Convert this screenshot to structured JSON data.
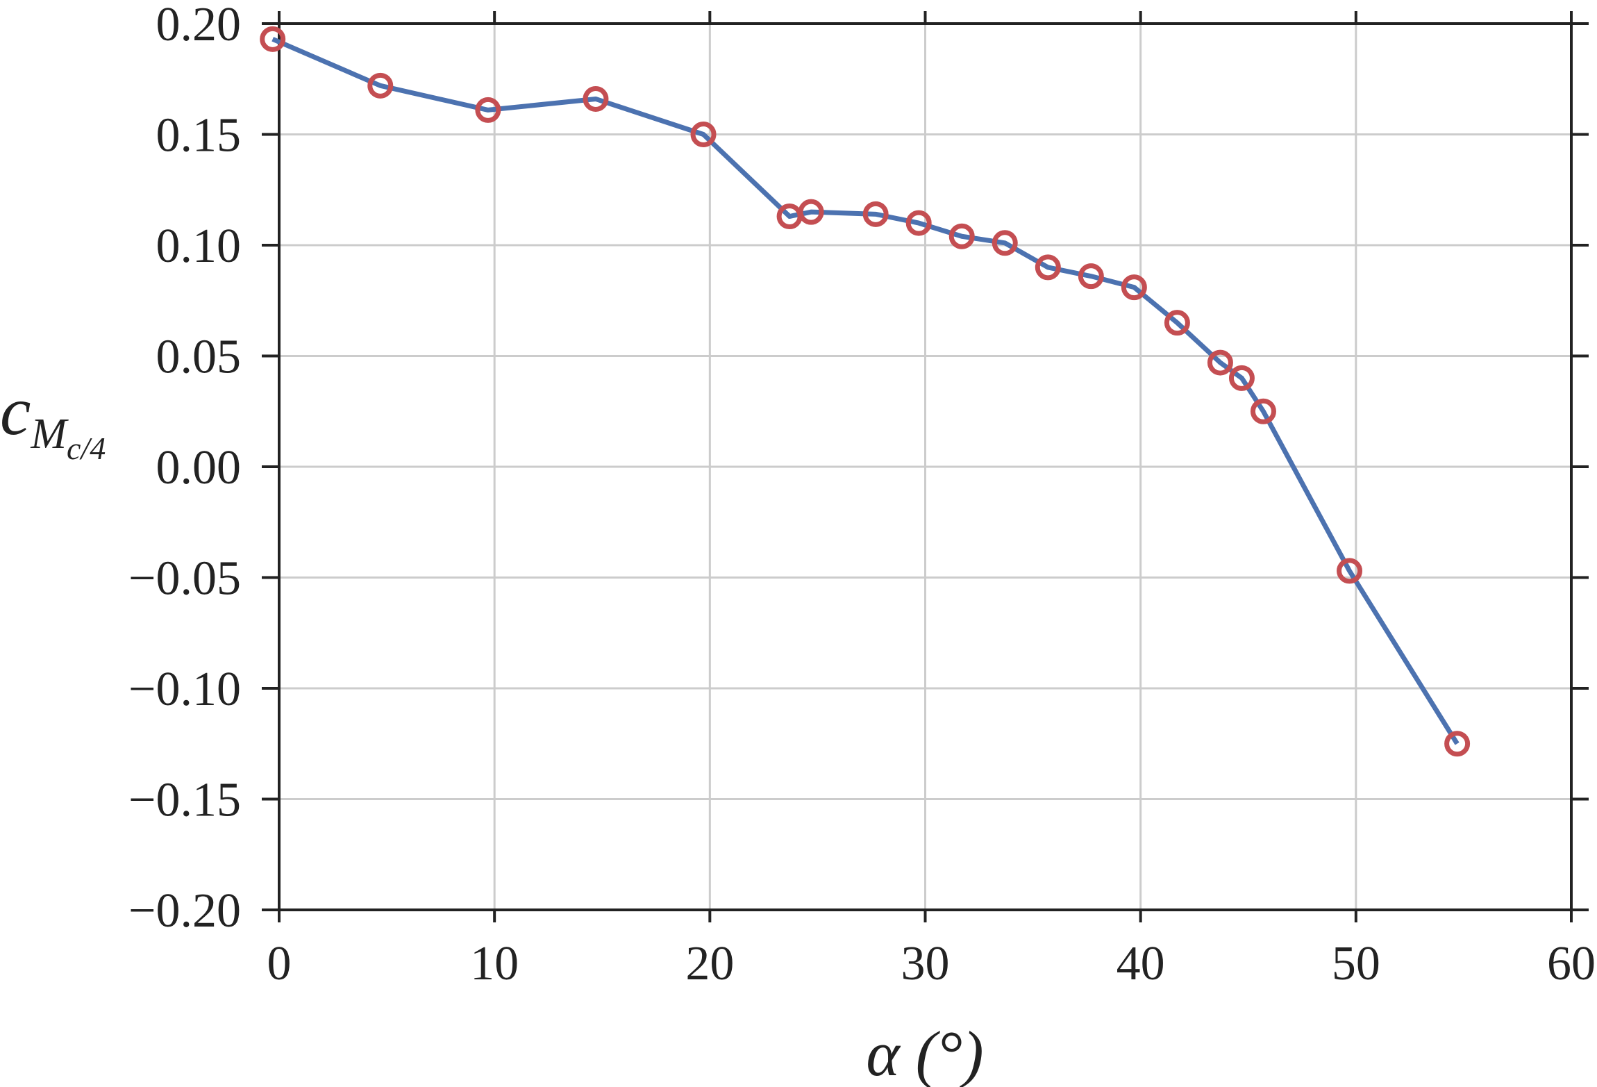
{
  "chart_data": {
    "type": "line",
    "title": "",
    "xlabel": "α (°)",
    "ylabel": {
      "main": "c",
      "sub": "M",
      "subsub": "c/4"
    },
    "xlim": [
      0,
      60
    ],
    "ylim": [
      -0.2,
      0.2
    ],
    "xticks": [
      "0",
      "10",
      "20",
      "30",
      "40",
      "50",
      "60"
    ],
    "yticks": [
      "−0.20",
      "−0.15",
      "−0.10",
      "−0.05",
      "0.00",
      "0.05",
      "0.10",
      "0.15",
      "0.20"
    ],
    "grid": true,
    "legend": "none",
    "colors": {
      "line": "#4c72b0",
      "marker": "#c44e52",
      "grid": "#cccccc",
      "axis": "#222222"
    },
    "series": [
      {
        "x": [
          -0.3,
          4.7,
          9.7,
          14.7,
          19.7,
          23.7,
          24.7,
          27.7,
          29.7,
          31.7,
          33.7,
          35.7,
          37.7,
          39.7,
          41.7,
          43.7,
          44.7,
          45.7,
          49.7,
          54.7
        ],
        "y": [
          0.193,
          0.172,
          0.161,
          0.166,
          0.15,
          0.113,
          0.115,
          0.114,
          0.11,
          0.104,
          0.101,
          0.09,
          0.086,
          0.081,
          0.065,
          0.047,
          0.04,
          0.025,
          -0.047,
          -0.125
        ]
      }
    ]
  }
}
